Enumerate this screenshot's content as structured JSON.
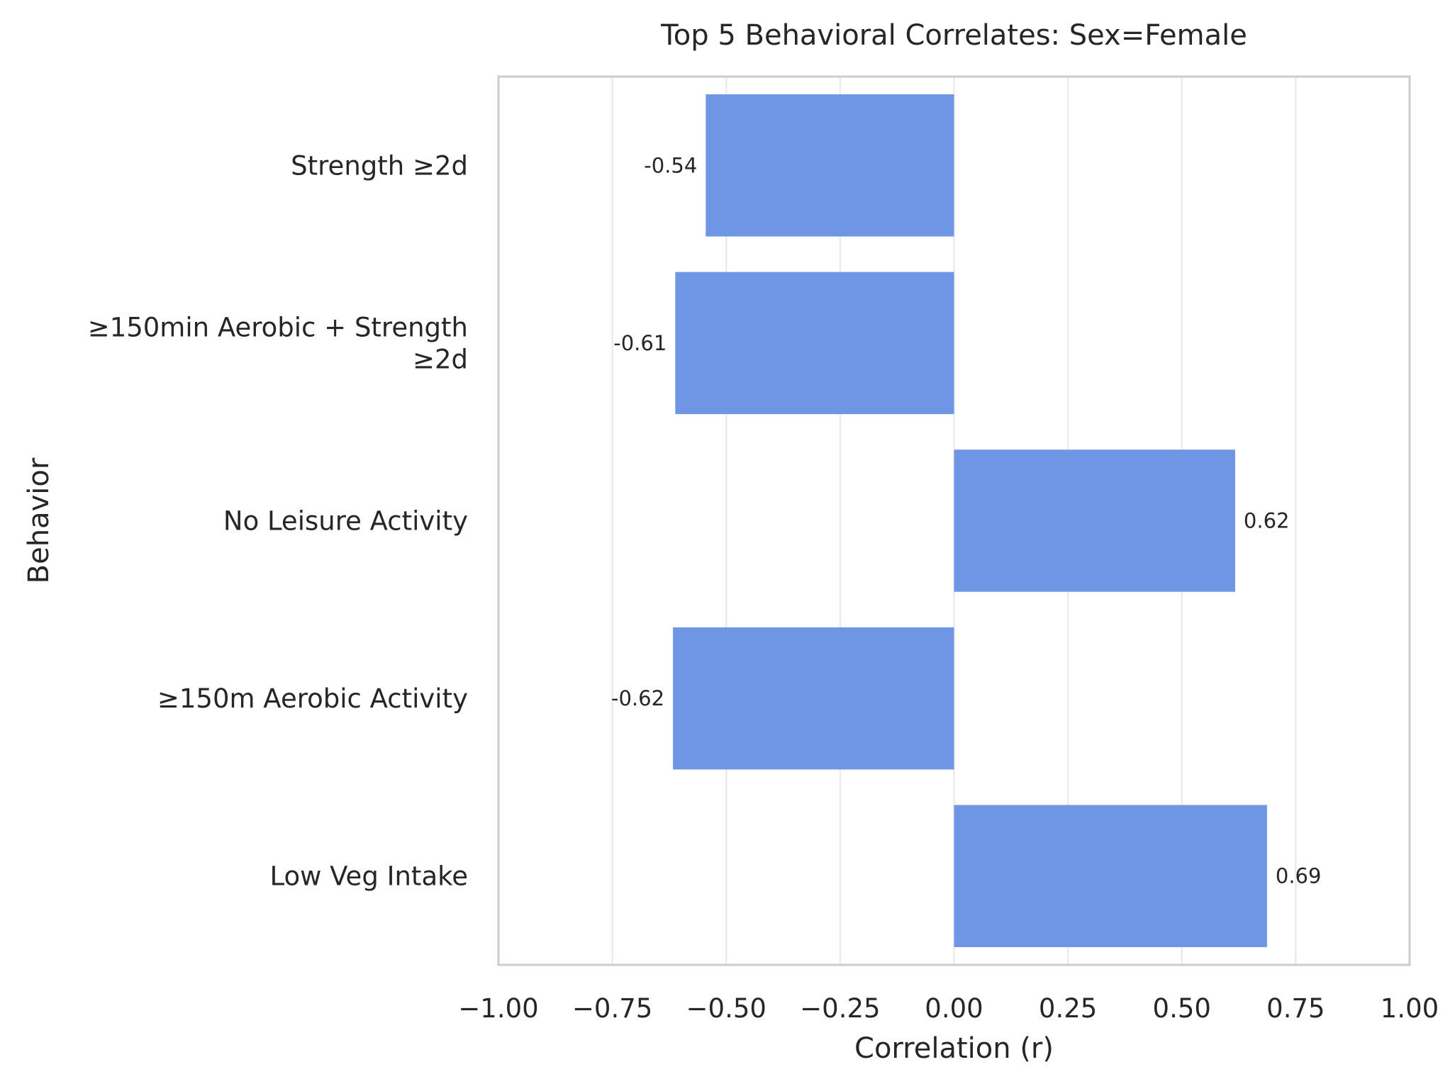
{
  "chart_data": {
    "type": "bar",
    "orientation": "horizontal",
    "title": "Top 5 Behavioral Correlates: Sex=Female",
    "xlabel": "Correlation (r)",
    "ylabel": "Behavior",
    "xlim": [
      -1.0,
      1.0
    ],
    "xticks": [
      -1.0,
      -0.75,
      -0.5,
      -0.25,
      0.0,
      0.25,
      0.5,
      0.75,
      1.0
    ],
    "xtick_labels": [
      "−1.00",
      "−0.75",
      "−0.50",
      "−0.25",
      "0.00",
      "0.25",
      "0.50",
      "0.75",
      "1.00"
    ],
    "grid": "vertical",
    "bar_color": "#6e96e5",
    "categories": [
      [
        "Strength ≥2d"
      ],
      [
        "≥150min Aerobic + Strength",
        "≥2d"
      ],
      [
        "No Leisure Activity"
      ],
      [
        "≥150m Aerobic Activity"
      ],
      [
        "Low Veg Intake"
      ]
    ],
    "values": [
      -0.545,
      -0.612,
      0.617,
      -0.617,
      0.687
    ],
    "data_labels": [
      "-0.54",
      "-0.61",
      "0.62",
      "-0.62",
      "0.69"
    ]
  }
}
